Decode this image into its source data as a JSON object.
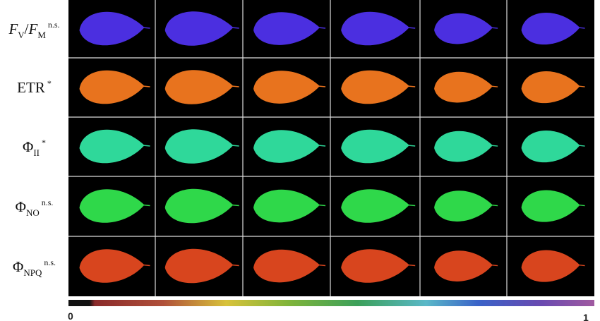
{
  "rows": [
    {
      "label": [
        {
          "text": "F",
          "italic": true
        },
        {
          "text": "V",
          "sub": true
        },
        {
          "text": "/"
        },
        {
          "text": "F",
          "italic": true
        },
        {
          "text": "M",
          "sub": true
        }
      ],
      "sig": "n.s.",
      "color": "#4b2fe0"
    },
    {
      "label": [
        {
          "text": "ETR"
        }
      ],
      "sig": "*",
      "color": "#e8731e"
    },
    {
      "label": [
        {
          "text": "Φ"
        },
        {
          "text": "II",
          "sub": true
        }
      ],
      "sig": "*",
      "color": "#2fd89a"
    },
    {
      "label": [
        {
          "text": "Φ"
        },
        {
          "text": "NO",
          "sub": true
        }
      ],
      "sig": "n.s.",
      "color": "#2fd84a"
    },
    {
      "label": [
        {
          "text": "Φ"
        },
        {
          "text": "NPQ",
          "sub": true
        }
      ],
      "sig": "n.s.",
      "color": "#d8451e"
    }
  ],
  "colorbar": {
    "min": "0",
    "max": "1"
  }
}
